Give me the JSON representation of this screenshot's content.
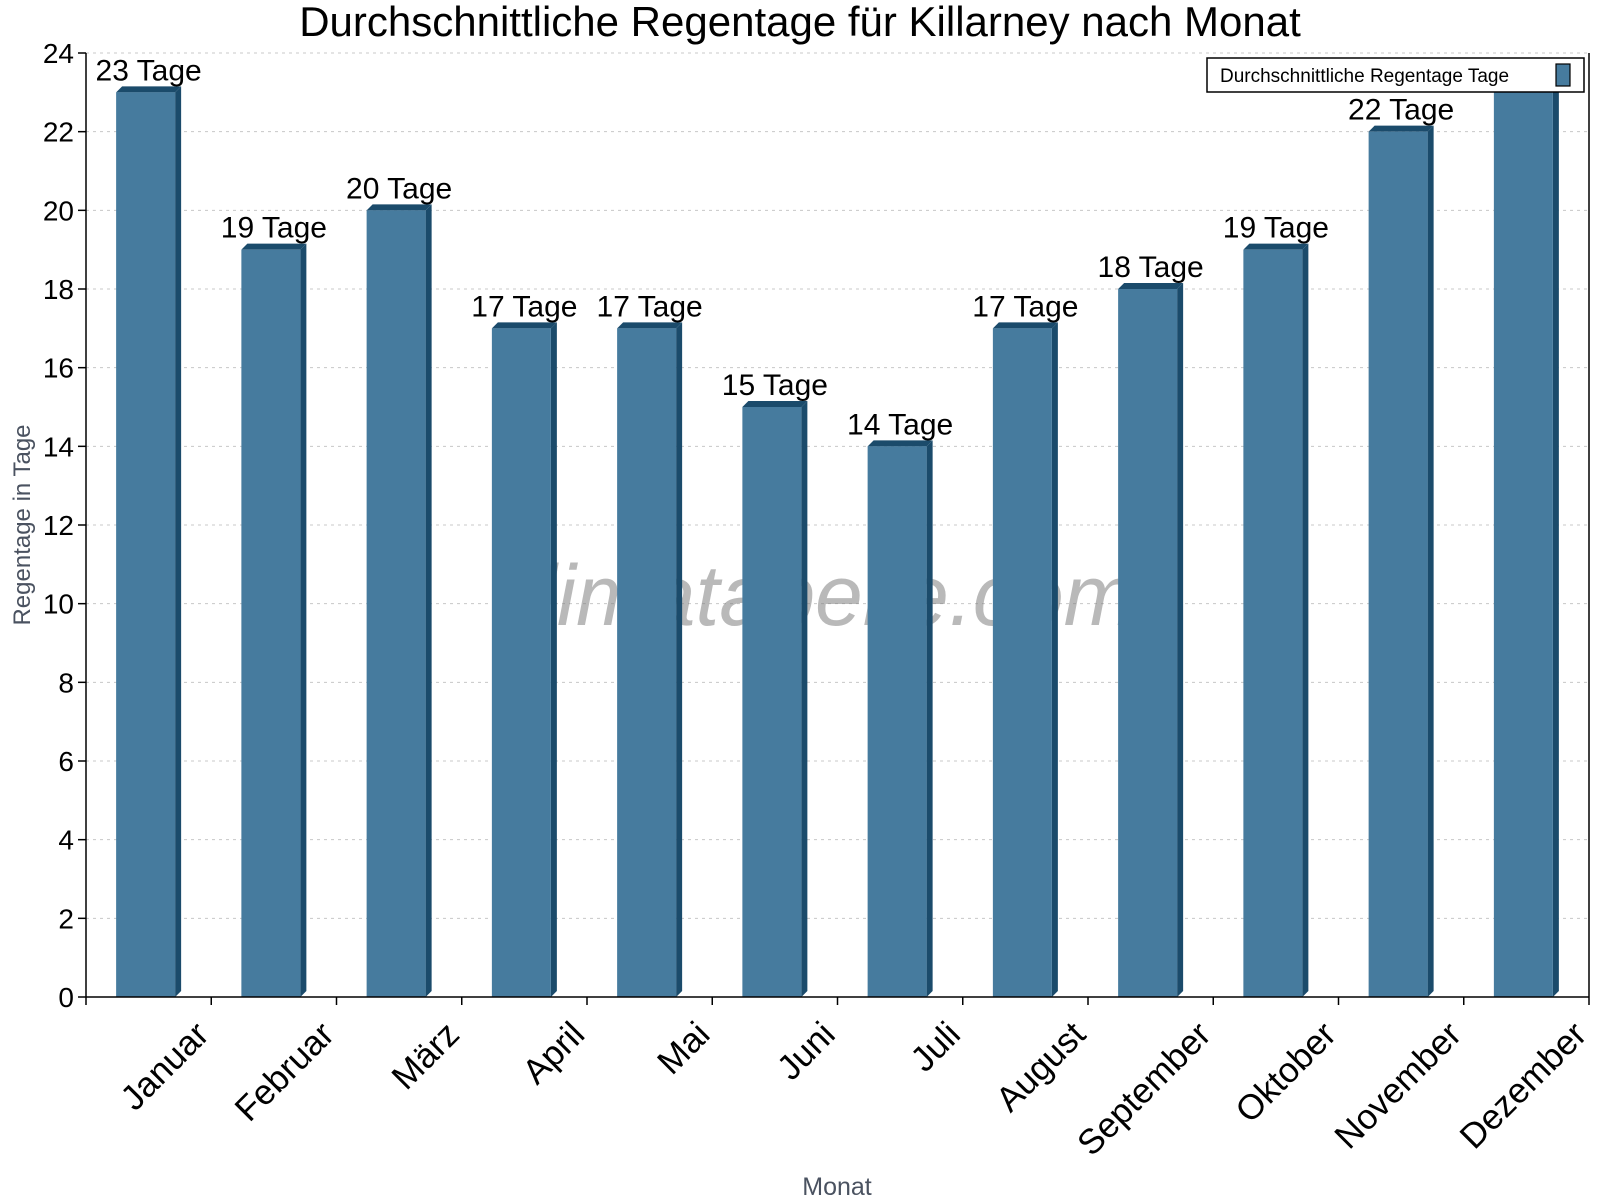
{
  "chart_data": {
    "type": "bar",
    "title": "Durchschnittliche Regentage für Killarney nach Monat",
    "xlabel": "Monat",
    "ylabel": "Regentage in Tage",
    "categories": [
      "Januar",
      "Februar",
      "März",
      "April",
      "Mai",
      "Juni",
      "Juli",
      "August",
      "September",
      "Oktober",
      "November",
      "Dezember"
    ],
    "series": [
      {
        "name": "Durchschnittliche Regentage Tage",
        "values": [
          23,
          19,
          20,
          17,
          17,
          15,
          14,
          17,
          18,
          19,
          22,
          23
        ]
      }
    ],
    "value_suffix": " Tage",
    "ylim": [
      0,
      24
    ],
    "yticks": [
      0,
      2,
      4,
      6,
      8,
      10,
      12,
      14,
      16,
      18,
      20,
      22,
      24
    ],
    "grid": true,
    "legend_position": "top-right",
    "watermark": "klimatabelle.com",
    "colors": {
      "bar": "#467b9e",
      "bar_side": "#1b4b6b",
      "grid": "#c8c8c8",
      "axis_label": "#4a5260"
    }
  }
}
